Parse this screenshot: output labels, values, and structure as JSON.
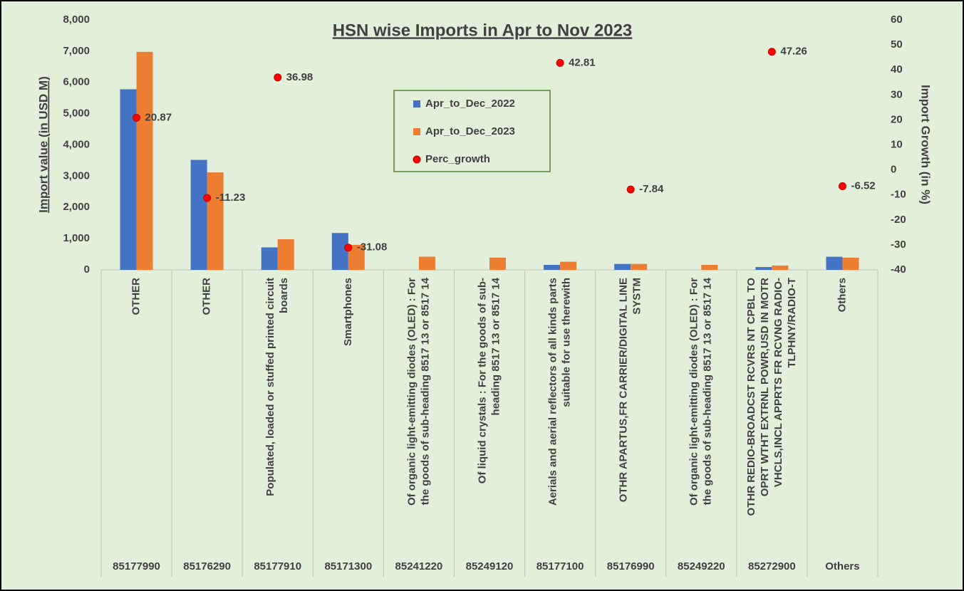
{
  "chart_data": {
    "type": "bar",
    "title": "HSN wise Imports in Apr to Nov 2023",
    "ylabel": "Import value (in USD M)",
    "y2label": "Import Growth (in %)",
    "categories": [
      "85177990",
      "85176290",
      "85177910",
      "85171300",
      "85241220",
      "85249120",
      "85177100",
      "85176990",
      "85249220",
      "85272900",
      "Others"
    ],
    "descriptions": [
      [
        "OTHER"
      ],
      [
        "OTHER"
      ],
      [
        "Populated, loaded or stuffed printed circuit",
        "boards"
      ],
      [
        "Smartphones"
      ],
      [
        "Of organic light-emitting diodes (OLED) : For",
        "the goods of sub-heading 8517 13 or 8517 14"
      ],
      [
        "Of liquid crystals : For the goods of sub-",
        "heading 8517 13 or 8517 14"
      ],
      [
        "Aerials and aerial reflectors of all kinds parts",
        "suitable for use therewith"
      ],
      [
        "OTHR APARTUS,FR CARRIER/DIGITAL LINE",
        "SYSTM"
      ],
      [
        "Of organic light-emitting diodes (OLED) : For",
        "the goods of sub-heading 8517 13 or 8517 14"
      ],
      [
        "OTHR REDIO-BROADCST RCVRS NT CPBL TO",
        "OPRT WTHT EXTRNL POWR,USD IN MOTR",
        "VHCLS,INCL  APPRTS FR RCVNG RADIO-",
        "TLPHNY/RADIO-T"
      ],
      [
        "Others"
      ]
    ],
    "series": [
      {
        "name": "Apr_to_Dec_2022",
        "color": "#4472c4",
        "values": [
          5780,
          3520,
          720,
          1180,
          0,
          0,
          160,
          190,
          0,
          90,
          420
        ]
      },
      {
        "name": "Apr_to_Dec_2023",
        "color": "#ed7d31",
        "values": [
          6980,
          3120,
          980,
          800,
          420,
          390,
          260,
          190,
          160,
          140,
          390
        ]
      },
      {
        "name": "Perc_growth",
        "color": "#ff0000",
        "type": "scatter",
        "axis": "y2",
        "values": [
          20.87,
          -11.23,
          36.98,
          -31.08,
          null,
          null,
          42.81,
          -7.84,
          null,
          47.26,
          -6.52
        ]
      }
    ],
    "ylim": [
      0,
      8000
    ],
    "yticks": [
      0,
      {
        "value": 1000,
        "label": "1,000"
      },
      {
        "value": 2000,
        "label": "2,000"
      },
      {
        "value": 3000,
        "label": "3,000"
      },
      {
        "value": 4000,
        "label": "4,000"
      },
      {
        "value": 5000,
        "label": "5,000"
      },
      {
        "value": 6000,
        "label": "6,000"
      },
      {
        "value": 7000,
        "label": "7,000"
      },
      {
        "value": 8000,
        "label": "8,000"
      }
    ],
    "y2lim": [
      -40,
      60
    ],
    "y2ticks": [
      -40,
      -30,
      -20,
      -10,
      0,
      10,
      20,
      30,
      40,
      50,
      60
    ]
  }
}
